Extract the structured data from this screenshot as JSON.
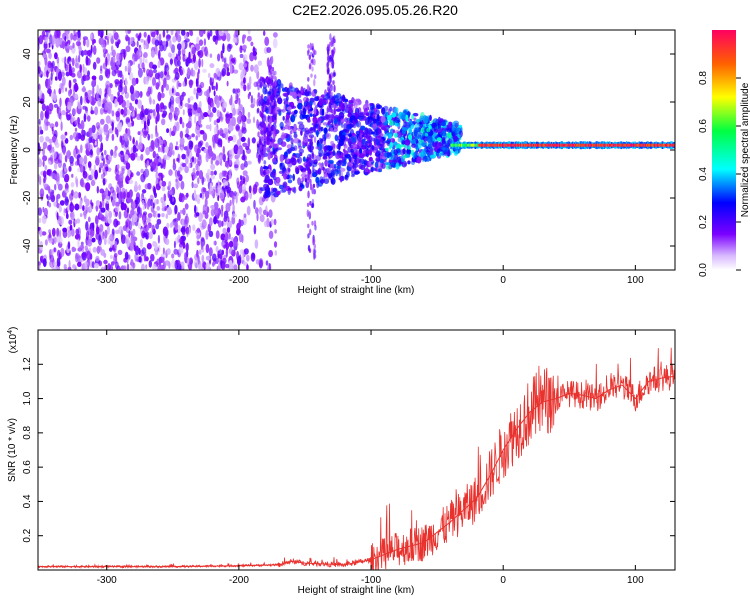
{
  "page_title": "C2E2.2026.095.05.26.R20",
  "colors": {
    "snr_line": "#e8322e",
    "spec_low": "#7a00ff",
    "spec_high": "#ff0050"
  },
  "chart_data": [
    {
      "type": "heatmap",
      "title": "C2E2.2026.095.05.26.R20",
      "xlabel": "Height of straight line (km)",
      "ylabel": "Frequency (Hz)",
      "xlim": [
        -352,
        130
      ],
      "ylim": [
        -50,
        50
      ],
      "xticks": [
        -300,
        -200,
        -100,
        0,
        100
      ],
      "yticks": [
        -40,
        -20,
        0,
        20,
        40
      ],
      "colorbar": {
        "label": "Normalized spectral amplitude",
        "range": [
          0.0,
          1.0
        ],
        "ticks": [
          "0.0",
          "0.2",
          "0.4",
          "0.6",
          "0.8"
        ]
      },
      "description_values": {
        "noise_region_end_km": -180,
        "signal_center_freq_hz": 2,
        "signal_onset_km": -40
      }
    },
    {
      "type": "line",
      "xlabel": "Height of straight line (km)",
      "ylabel": "SNR (10 * v/v)",
      "y_multiplier": "(x10",
      "y_multiplier_exp": "4",
      "y_multiplier_close": ")",
      "xlim": [
        -352,
        130
      ],
      "ylim": [
        0,
        1.4
      ],
      "xticks": [
        -300,
        -200,
        -100,
        0,
        100
      ],
      "yticks": [
        "0.2",
        "0.4",
        "0.6",
        "0.8",
        "1.0",
        "1.2"
      ],
      "series": [
        {
          "name": "SNR",
          "x": [
            -352,
            -300,
            -250,
            -200,
            -170,
            -160,
            -150,
            -120,
            -100,
            -80,
            -60,
            -50,
            -40,
            -30,
            -20,
            -10,
            0,
            10,
            20,
            30,
            40,
            50,
            60,
            70,
            80,
            90,
            100,
            110,
            120,
            130
          ],
          "y": [
            0.02,
            0.02,
            0.02,
            0.025,
            0.03,
            0.05,
            0.04,
            0.03,
            0.06,
            0.12,
            0.16,
            0.22,
            0.28,
            0.35,
            0.42,
            0.55,
            0.7,
            0.82,
            0.92,
            0.98,
            1.0,
            1.03,
            1.02,
            1.0,
            1.05,
            1.08,
            1.0,
            1.1,
            1.12,
            1.13
          ]
        }
      ]
    }
  ]
}
